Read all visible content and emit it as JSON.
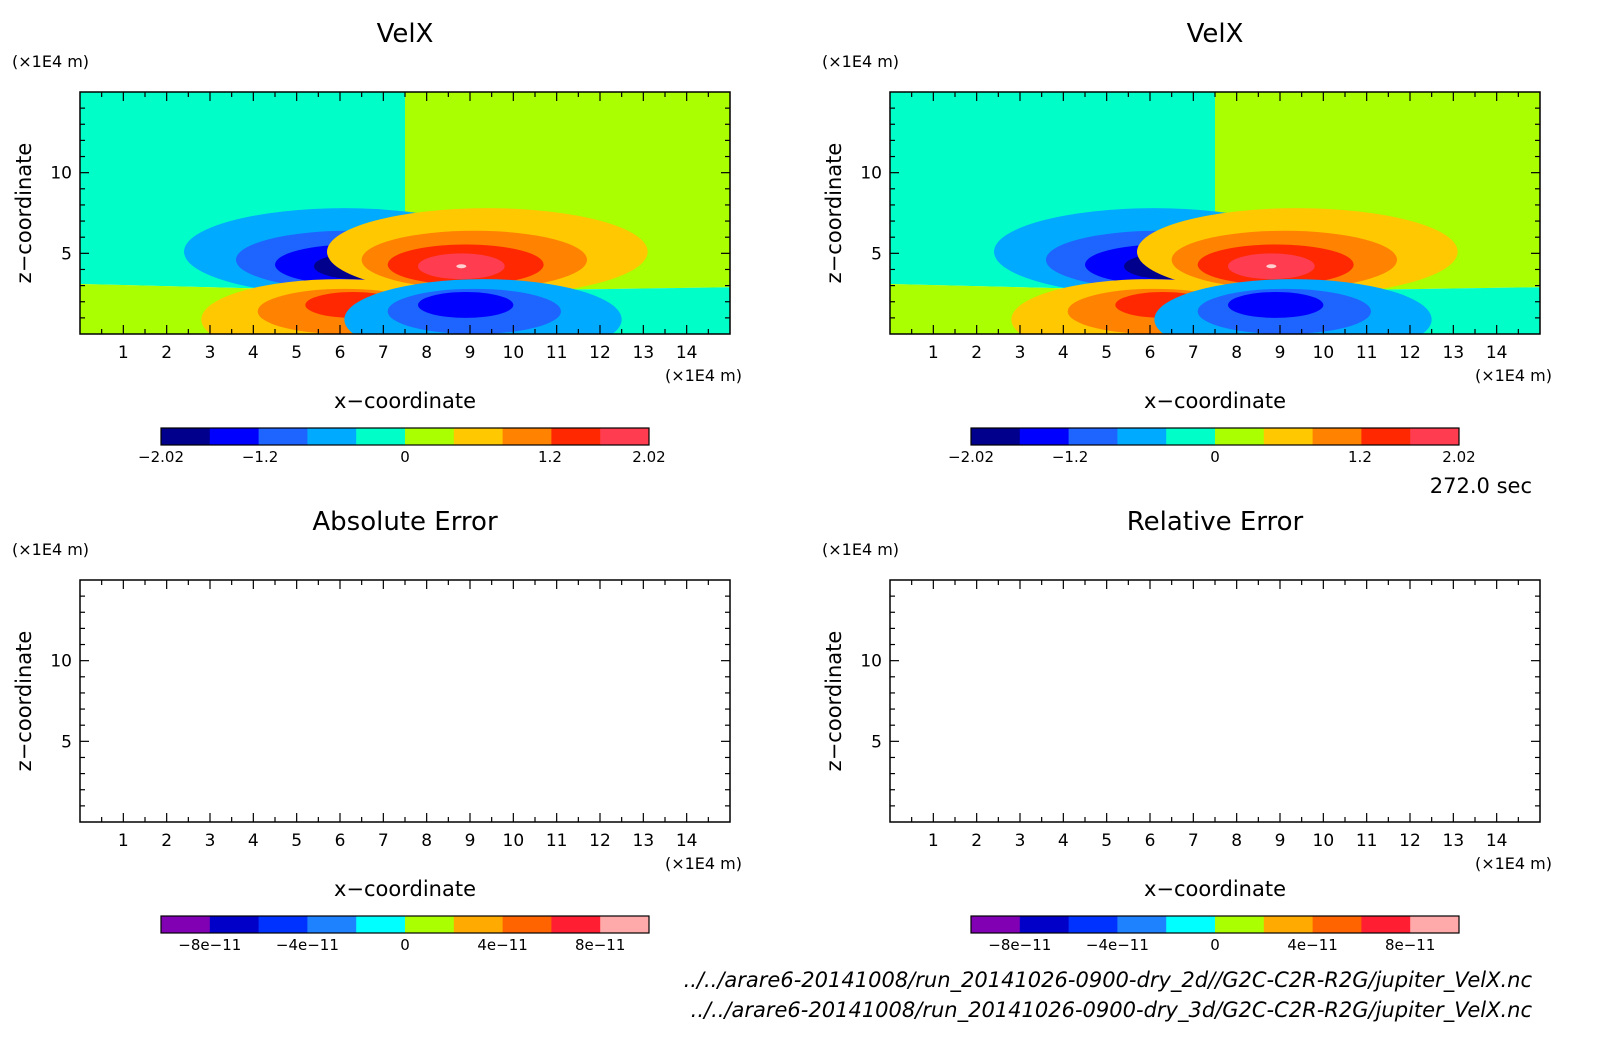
{
  "time_label": "272.0 sec",
  "file_paths": [
    "../../arare6-20141008/run_20141026-0900-dry_2d//G2C-C2R-R2G/jupiter_VelX.nc",
    "../../arare6-20141008/run_20141026-0900-dry_3d/G2C-C2R-R2G/jupiter_VelX.nc"
  ],
  "chart_data": [
    {
      "type": "heatmap",
      "title": "VelX",
      "xlabel": "x−coordinate",
      "ylabel": "z−coordinate",
      "x_unit": "(×1E4 m)",
      "y_unit": "(×1E4 m)",
      "xlim": [
        0,
        15
      ],
      "ylim": [
        0,
        15
      ],
      "x_ticks": [
        "1",
        "2",
        "3",
        "4",
        "5",
        "6",
        "7",
        "8",
        "9",
        "10",
        "11",
        "12",
        "13",
        "14"
      ],
      "y_ticks": [
        "5",
        "10"
      ],
      "colorbar": {
        "range": [
          -2.02,
          2.02
        ],
        "labels": [
          "−2.02",
          "−1.2",
          "0",
          "1.2",
          "2.02"
        ],
        "label_values": [
          -2.02,
          -1.2,
          0,
          1.2,
          2.02
        ],
        "colors": [
          "#00008c",
          "#0000ff",
          "#1e64ff",
          "#00aaff",
          "#00ffc8",
          "#aaff00",
          "#ffc800",
          "#ff8200",
          "#ff2800",
          "#ff3c50"
        ]
      },
      "fill": "contour",
      "blank": false
    },
    {
      "type": "heatmap",
      "title": "VelX",
      "xlabel": "x−coordinate",
      "ylabel": "z−coordinate",
      "x_unit": "(×1E4 m)",
      "y_unit": "(×1E4 m)",
      "xlim": [
        0,
        15
      ],
      "ylim": [
        0,
        15
      ],
      "x_ticks": [
        "1",
        "2",
        "3",
        "4",
        "5",
        "6",
        "7",
        "8",
        "9",
        "10",
        "11",
        "12",
        "13",
        "14"
      ],
      "y_ticks": [
        "5",
        "10"
      ],
      "colorbar": {
        "range": [
          -2.02,
          2.02
        ],
        "labels": [
          "−2.02",
          "−1.2",
          "0",
          "1.2",
          "2.02"
        ],
        "label_values": [
          -2.02,
          -1.2,
          0,
          1.2,
          2.02
        ],
        "colors": [
          "#00008c",
          "#0000ff",
          "#1e64ff",
          "#00aaff",
          "#00ffc8",
          "#aaff00",
          "#ffc800",
          "#ff8200",
          "#ff2800",
          "#ff3c50"
        ]
      },
      "fill": "contour",
      "blank": false
    },
    {
      "type": "heatmap",
      "title": "Absolute Error",
      "xlabel": "x−coordinate",
      "ylabel": "z−coordinate",
      "x_unit": "(×1E4 m)",
      "y_unit": "(×1E4 m)",
      "xlim": [
        0,
        15
      ],
      "ylim": [
        0,
        15
      ],
      "x_ticks": [
        "1",
        "2",
        "3",
        "4",
        "5",
        "6",
        "7",
        "8",
        "9",
        "10",
        "11",
        "12",
        "13",
        "14"
      ],
      "y_ticks": [
        "5",
        "10"
      ],
      "colorbar": {
        "range": [
          -1e-10,
          1e-10
        ],
        "labels": [
          "−8e−11",
          "−4e−11",
          "0",
          "4e−11",
          "8e−11"
        ],
        "label_values": [
          -8e-11,
          -4e-11,
          0,
          4e-11,
          8e-11
        ],
        "colors": [
          "#8200b4",
          "#0000c8",
          "#0032ff",
          "#1e82ff",
          "#00ffff",
          "#aaff00",
          "#ffaa00",
          "#ff6400",
          "#ff1e32",
          "#ffaaaa"
        ]
      },
      "fill": "none",
      "blank": true
    },
    {
      "type": "heatmap",
      "title": "Relative Error",
      "xlabel": "x−coordinate",
      "ylabel": "z−coordinate",
      "x_unit": "(×1E4 m)",
      "y_unit": "(×1E4 m)",
      "xlim": [
        0,
        15
      ],
      "ylim": [
        0,
        15
      ],
      "x_ticks": [
        "1",
        "2",
        "3",
        "4",
        "5",
        "6",
        "7",
        "8",
        "9",
        "10",
        "11",
        "12",
        "13",
        "14"
      ],
      "y_ticks": [
        "5",
        "10"
      ],
      "colorbar": {
        "range": [
          -1e-10,
          1e-10
        ],
        "labels": [
          "−8e−11",
          "−4e−11",
          "0",
          "4e−11",
          "8e−11"
        ],
        "label_values": [
          -8e-11,
          -4e-11,
          0,
          4e-11,
          8e-11
        ],
        "colors": [
          "#8200b4",
          "#0000c8",
          "#0032ff",
          "#1e82ff",
          "#00ffff",
          "#aaff00",
          "#ffaa00",
          "#ff6400",
          "#ff1e32",
          "#ffaaaa"
        ]
      },
      "fill": "none",
      "blank": true
    }
  ]
}
